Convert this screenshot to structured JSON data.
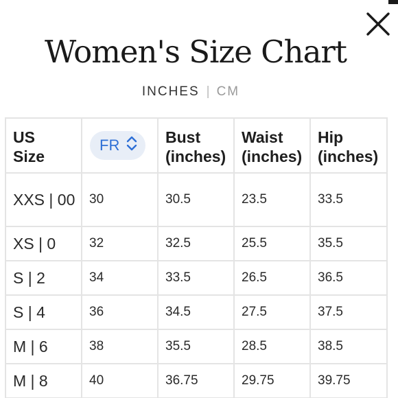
{
  "dialog": {
    "title": "Women's Size Chart",
    "close_icon": "close-icon"
  },
  "units": {
    "inches": "INCHES",
    "separator": "|",
    "cm": "CM",
    "selected": "INCHES"
  },
  "region_select": {
    "value": "FR",
    "icon": "chevron-up-down-icon",
    "accent_color": "#2d6fd6",
    "background_color": "#e8eef7"
  },
  "table": {
    "headers": {
      "us_line1": "US",
      "us_line2": "Size",
      "bust_line1": "Bust",
      "bust_line2": "(inches)",
      "waist_line1": "Waist",
      "waist_line2": "(inches)",
      "hip_line1": "Hip",
      "hip_line2": "(inches)"
    },
    "rows": [
      {
        "us": "XXS | 00",
        "fr": "30",
        "bust": "30.5",
        "waist": "23.5",
        "hip": "33.5"
      },
      {
        "us": "XS | 0",
        "fr": "32",
        "bust": "32.5",
        "waist": "25.5",
        "hip": "35.5"
      },
      {
        "us": "S | 2",
        "fr": "34",
        "bust": "33.5",
        "waist": "26.5",
        "hip": "36.5"
      },
      {
        "us": "S | 4",
        "fr": "36",
        "bust": "34.5",
        "waist": "27.5",
        "hip": "37.5"
      },
      {
        "us": "M | 6",
        "fr": "38",
        "bust": "35.5",
        "waist": "28.5",
        "hip": "38.5"
      },
      {
        "us": "M | 8",
        "fr": "40",
        "bust": "36.75",
        "waist": "29.75",
        "hip": "39.75"
      }
    ]
  }
}
